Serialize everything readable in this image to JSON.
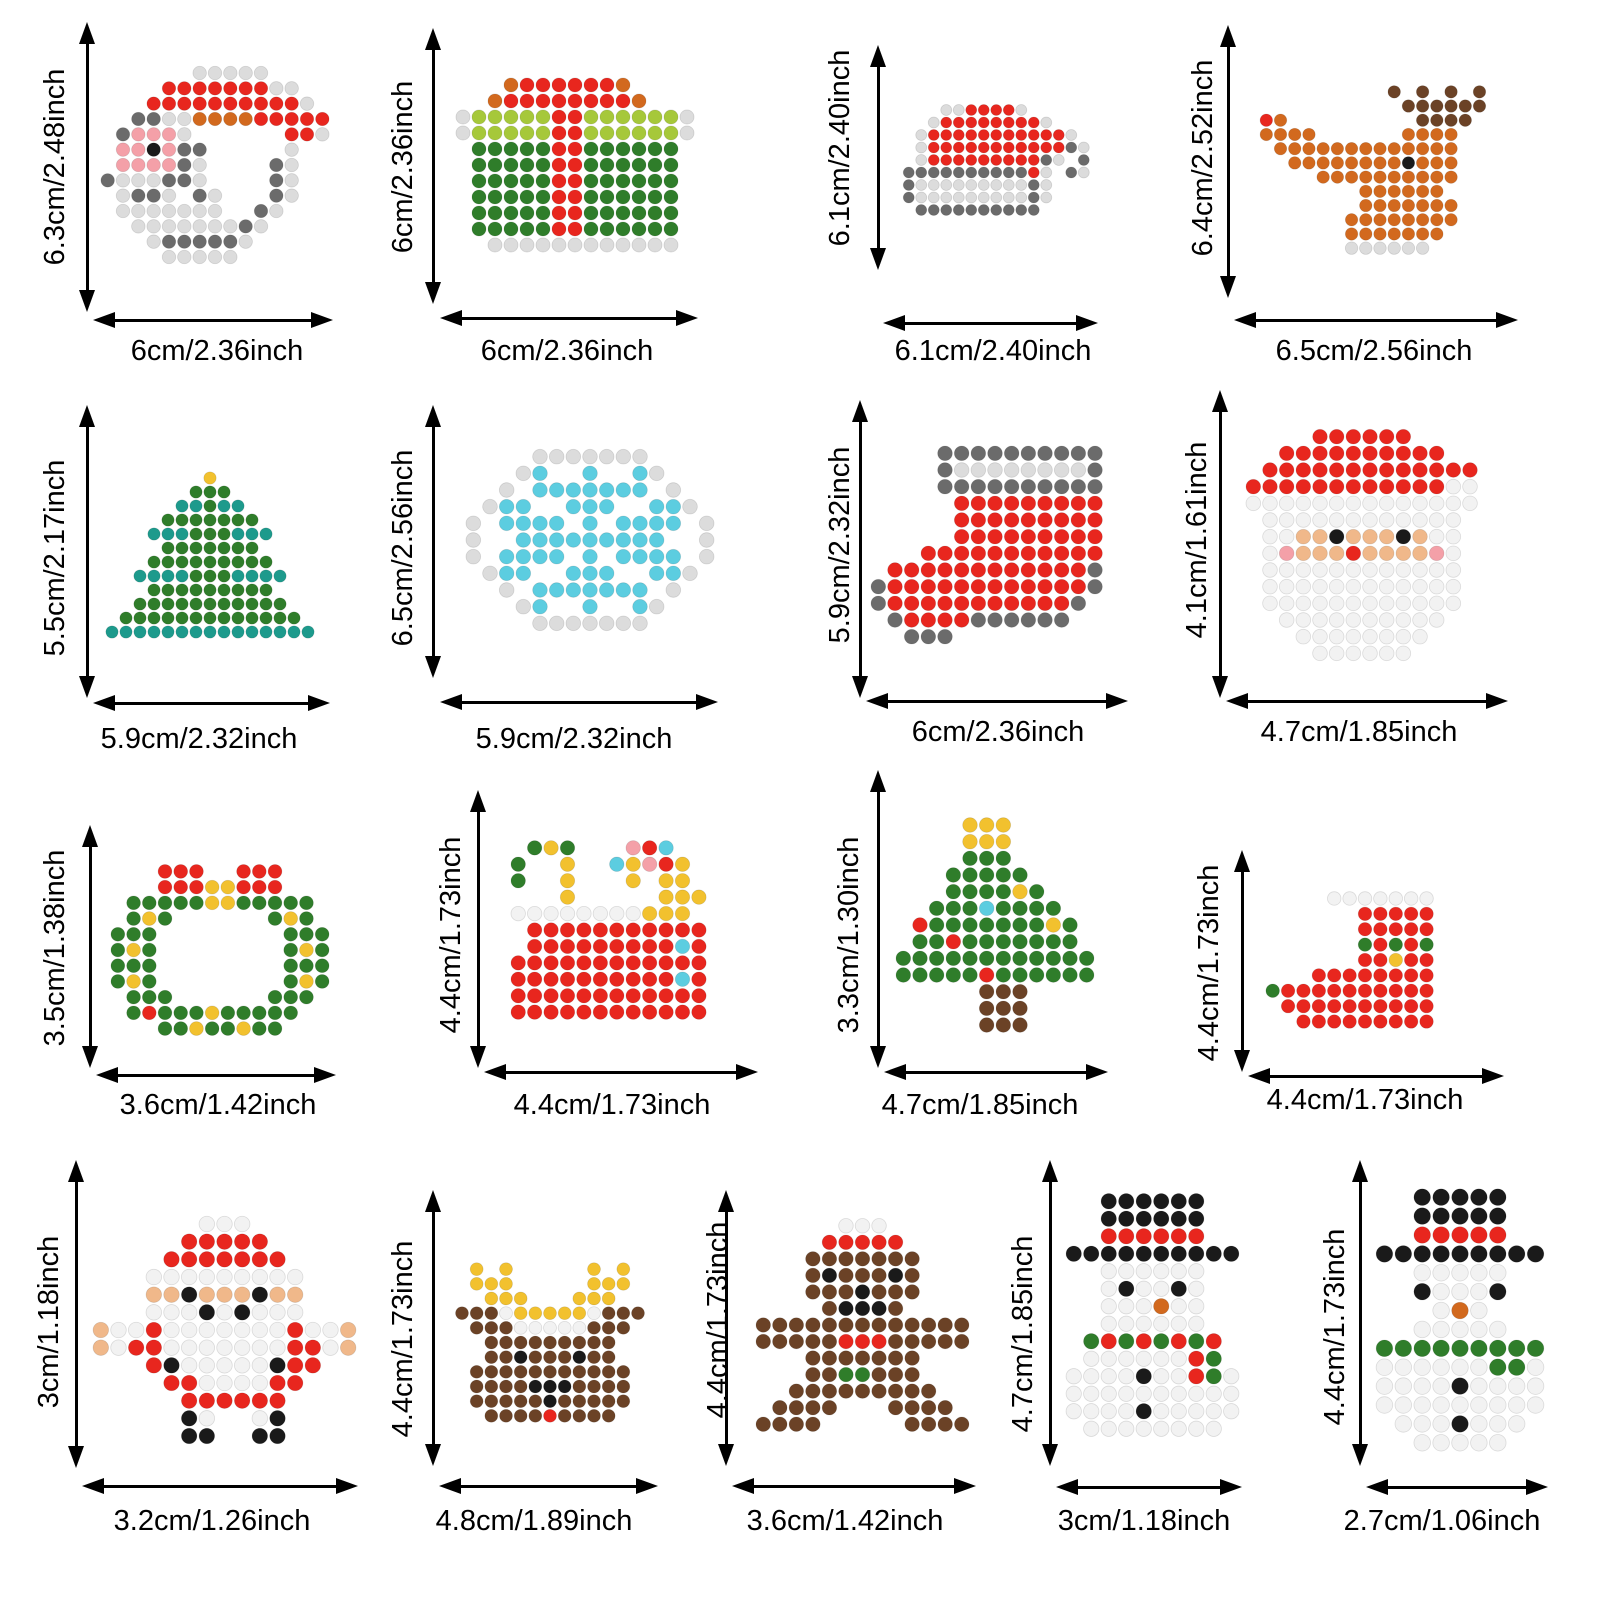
{
  "colors": {
    "red": "#e8261e",
    "white": "#f2f2f2",
    "outline": "#dcdcdc",
    "gray": "#6b6b6b",
    "green": "#2f7d2a",
    "lime": "#a6c83a",
    "teal": "#1d9a8c",
    "skyblue": "#5ccde0",
    "brown": "#6b4226",
    "orange": "#d2691e",
    "yellow": "#f2c12e",
    "black": "#1a1a1a",
    "skin": "#f0b88a",
    "pink": "#f4a0a8"
  },
  "items": [
    {
      "name": "santa-face",
      "icon": "santa-icon",
      "width": "6cm/2.36inch",
      "height": "6.3cm/2.48inch"
    },
    {
      "name": "gift-box",
      "icon": "gift-icon",
      "width": "6cm/2.36inch",
      "height": "6cm/2.36inch"
    },
    {
      "name": "santa-hat",
      "icon": "hat-icon",
      "width": "6.1cm/2.40inch",
      "height": "6.1cm/2.40inch"
    },
    {
      "name": "reindeer-head",
      "icon": "reindeer-icon",
      "width": "6.5cm/2.56inch",
      "height": "6.4cm/2.52inch"
    },
    {
      "name": "christmas-tree",
      "icon": "tree-icon",
      "width": "5.9cm/2.32inch",
      "height": "5.5cm/2.17inch"
    },
    {
      "name": "snowflake",
      "icon": "snowflake-icon",
      "width": "5.9cm/2.32inch",
      "height": "6.5cm/2.56inch"
    },
    {
      "name": "stocking",
      "icon": "stocking-icon",
      "width": "6cm/2.36inch",
      "height": "5.9cm/2.32inch"
    },
    {
      "name": "pixel-santa",
      "icon": "santa-icon",
      "width": "4.7cm/1.85inch",
      "height": "4.1cm/1.61inch"
    },
    {
      "name": "wreath",
      "icon": "wreath-icon",
      "width": "3.6cm/1.42inch",
      "height": "3.5cm/1.38inch"
    },
    {
      "name": "candy-sack",
      "icon": "sack-icon",
      "width": "4.4cm/1.73inch",
      "height": "4.4cm/1.73inch"
    },
    {
      "name": "small-tree",
      "icon": "tree-icon",
      "width": "4.7cm/1.85inch",
      "height": "3.3cm/1.30inch"
    },
    {
      "name": "small-stocking",
      "icon": "stocking-icon",
      "width": "4.4cm/1.73inch",
      "height": "4.4cm/1.73inch"
    },
    {
      "name": "santa-body",
      "icon": "santa-icon",
      "width": "3.2cm/1.26inch",
      "height": "3cm/1.18inch"
    },
    {
      "name": "pixel-reindeer",
      "icon": "reindeer-icon",
      "width": "4.8cm/1.89inch",
      "height": "4.4cm/1.73inch"
    },
    {
      "name": "gingerbread-man",
      "icon": "gingerbread-icon",
      "width": "3.6cm/1.42inch",
      "height": "4.4cm/1.73inch"
    },
    {
      "name": "snowman-red-scarf",
      "icon": "snowman-icon",
      "width": "3cm/1.18inch",
      "height": "4.7cm/1.85inch"
    },
    {
      "name": "snowman-green-scarf",
      "icon": "snowman-icon",
      "width": "2.7cm/1.06inch",
      "height": "4.4cm/1.73inch"
    }
  ]
}
